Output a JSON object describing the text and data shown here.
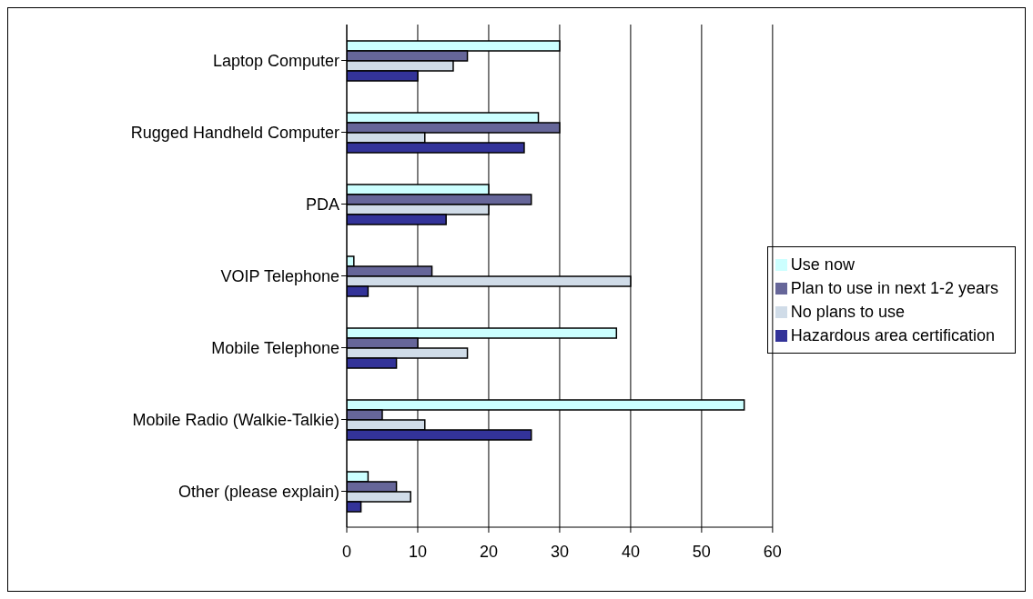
{
  "chart_data": {
    "type": "bar",
    "orientation": "horizontal",
    "categories": [
      "Laptop Computer",
      "Rugged Handheld Computer",
      "PDA",
      "VOIP Telephone",
      "Mobile Telephone",
      "Mobile Radio (Walkie-Talkie)",
      "Other (please explain)"
    ],
    "series": [
      {
        "name": "Use now",
        "color": "#ccffff",
        "values": [
          30,
          27,
          20,
          1,
          38,
          56,
          3
        ]
      },
      {
        "name": "Plan to use in next 1-2 years",
        "color": "#666699",
        "values": [
          17,
          30,
          26,
          12,
          10,
          5,
          7
        ]
      },
      {
        "name": "No plans to use",
        "color": "#d0dce8",
        "values": [
          15,
          11,
          20,
          40,
          17,
          11,
          9
        ]
      },
      {
        "name": "Hazardous area certification",
        "color": "#333399",
        "values": [
          10,
          25,
          14,
          3,
          7,
          26,
          2
        ]
      }
    ],
    "xlim": [
      0,
      60
    ],
    "xticks": [
      0,
      10,
      20,
      30,
      40,
      50,
      60
    ],
    "grid": "x",
    "legend": "right"
  }
}
